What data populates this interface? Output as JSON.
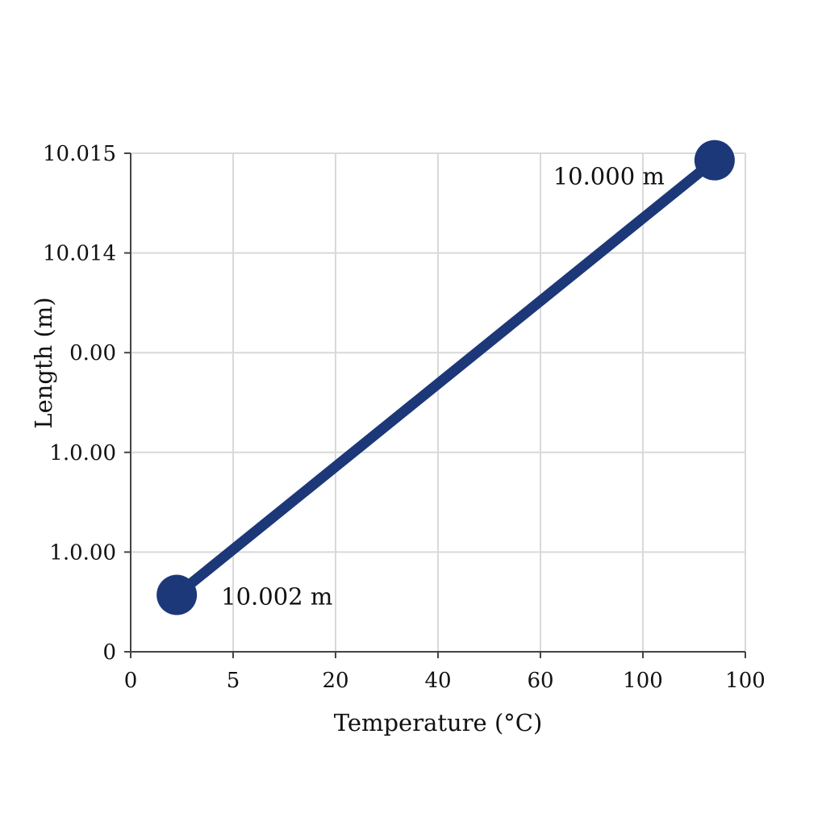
{
  "chart_data": {
    "type": "line",
    "title": "",
    "xlabel": "Temperature (°C)",
    "ylabel": "Length (m)",
    "x_ticks": [
      "0",
      "5",
      "20",
      "40",
      "60",
      "100",
      "100"
    ],
    "y_ticks": [
      "0",
      "1.0.00",
      "1.0.00",
      "0.00",
      "10.014",
      "10.015"
    ],
    "grid": true,
    "legend": "none",
    "line_color": "#1c3879",
    "axis_color": "#444444",
    "grid_color": "#d9d9d9",
    "series": [
      {
        "x_tick_position": [
          0.45,
          5.7
        ],
        "y_tick_position": [
          0.57,
          4.93
        ],
        "labels": [
          "10.002 m",
          "10.000 m"
        ]
      }
    ]
  }
}
